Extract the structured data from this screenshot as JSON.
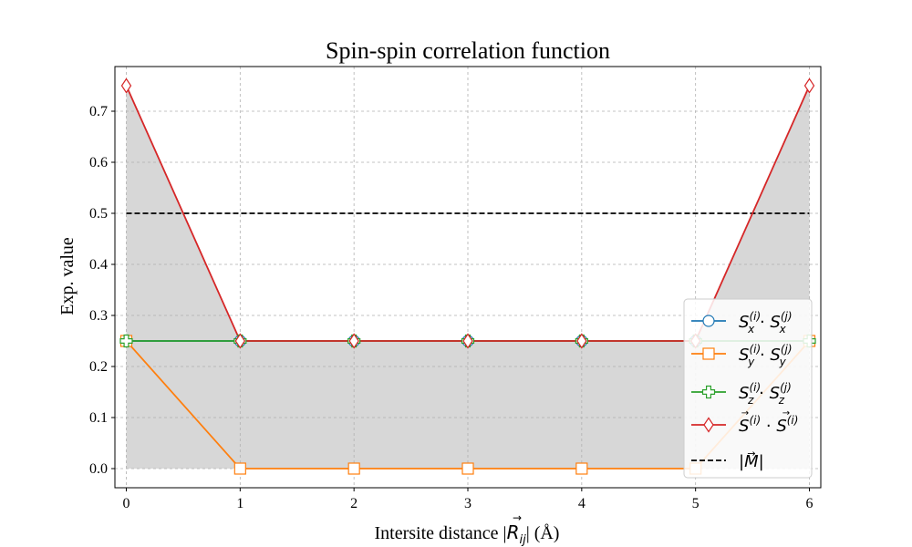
{
  "chart_data": {
    "type": "line",
    "title": "Spin-spin correlation function",
    "xlabel": {
      "prefix": "Intersite distance |",
      "symbol": "R",
      "sub": "ij",
      "suffix": "| (Å)"
    },
    "ylabel": "Exp. value",
    "xlim": [
      -0.1,
      6.1
    ],
    "ylim": [
      -0.0375,
      0.7875
    ],
    "xticks": [
      0,
      1,
      2,
      3,
      4,
      5,
      6
    ],
    "xtick_labels": [
      "0",
      "1",
      "2",
      "3",
      "4",
      "5",
      "6"
    ],
    "yticks": [
      0.0,
      0.1,
      0.2,
      0.3,
      0.4,
      0.5,
      0.6,
      0.7
    ],
    "ytick_labels": [
      "0.0",
      "0.1",
      "0.2",
      "0.3",
      "0.4",
      "0.5",
      "0.6",
      "0.7"
    ],
    "grid": true,
    "legend_position": "lower-right",
    "x": [
      0,
      1,
      2,
      3,
      4,
      5,
      6
    ],
    "fill_between": {
      "series": "total",
      "baseline": 0,
      "color": "#d7d7d7"
    },
    "series": [
      {
        "key": "sx",
        "op": "S",
        "vec": false,
        "comp": "x",
        "values": [
          0.25,
          0.25,
          0.25,
          0.25,
          0.25,
          0.25,
          0.25
        ],
        "color": "#1f77b4",
        "marker": "circle"
      },
      {
        "key": "sy",
        "op": "S",
        "vec": false,
        "comp": "y",
        "values": [
          0.25,
          0.0,
          0.0,
          0.0,
          0.0,
          0.0,
          0.25
        ],
        "color": "#ff7f0e",
        "marker": "square"
      },
      {
        "key": "sz",
        "op": "S",
        "vec": false,
        "comp": "z",
        "values": [
          0.25,
          0.25,
          0.25,
          0.25,
          0.25,
          0.25,
          0.25
        ],
        "color": "#2ca02c",
        "marker": "plus"
      },
      {
        "key": "total",
        "op": "S",
        "vec": true,
        "comp": "",
        "values": [
          0.75,
          0.25,
          0.25,
          0.25,
          0.25,
          0.25,
          0.75
        ],
        "color": "#d62728",
        "marker": "diamond"
      }
    ],
    "hline": {
      "y": 0.5,
      "color": "#000000",
      "style": "dashed",
      "legend": "|M|"
    },
    "legend_items": [
      {
        "text": "S(i)x · S(j)x",
        "series": "sx",
        "op": "S",
        "vec": false,
        "l_sup": "(i)",
        "l_sub": "x",
        "r_sup": "(j)",
        "r_sub": "x"
      },
      {
        "text": "S(i)y · S(j)y",
        "series": "sy",
        "op": "S",
        "vec": false,
        "l_sup": "(i)",
        "l_sub": "y",
        "r_sup": "(j)",
        "r_sub": "y"
      },
      {
        "text": "S(i)z · S(j)z",
        "series": "sz",
        "op": "S",
        "vec": false,
        "l_sup": "(i)",
        "l_sub": "z",
        "r_sup": "(j)",
        "r_sub": "z"
      },
      {
        "text": "S(i) · S(i)",
        "series": "total",
        "op": "S",
        "vec": true,
        "l_sup": "(i)",
        "l_sub": "",
        "r_sup": "(i)",
        "r_sub": ""
      },
      {
        "text": "|M|",
        "series": "hline",
        "op": "M",
        "vec": true
      }
    ]
  }
}
